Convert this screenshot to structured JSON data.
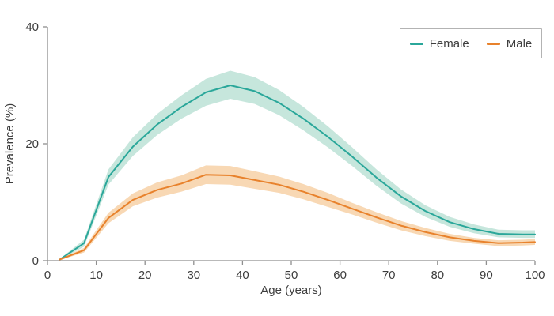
{
  "colors": {
    "female_line": "#2aa79a",
    "female_band": "#c6e6dc",
    "male_line": "#e8822c",
    "male_band": "#f8d8b4",
    "axis": "#8f8f8f",
    "text": "#3d3d3d",
    "legend_border": "#b3b3b3"
  },
  "legend": {
    "items": [
      {
        "label": "Female",
        "color": "#2aa79a"
      },
      {
        "label": "Male",
        "color": "#e8822c"
      }
    ]
  },
  "chart_data": {
    "type": "line",
    "title": "",
    "xlabel": "Age (years)",
    "ylabel": "Prevalence (%)",
    "xlim": [
      0,
      100
    ],
    "ylim": [
      0,
      40
    ],
    "x_ticks": [
      0,
      10,
      20,
      30,
      40,
      50,
      60,
      70,
      80,
      90,
      100
    ],
    "y_ticks": [
      0,
      20,
      40
    ],
    "grid": false,
    "legend_position": "top-right",
    "x": [
      2.5,
      7.5,
      12.5,
      17.5,
      22.5,
      27.5,
      32.5,
      37.5,
      42.5,
      47.5,
      52.5,
      57.5,
      62.5,
      67.5,
      72.5,
      77.5,
      82.5,
      87.5,
      92.5,
      97.5,
      100
    ],
    "series": [
      {
        "name": "Female",
        "values": [
          0.2,
          3.0,
          14.3,
          19.5,
          23.3,
          26.3,
          28.8,
          30.0,
          29.0,
          27.0,
          24.3,
          21.2,
          17.8,
          14.2,
          11.0,
          8.5,
          6.6,
          5.4,
          4.6,
          4.5,
          4.5
        ],
        "upper": [
          0.3,
          3.6,
          15.6,
          21.1,
          25.1,
          28.3,
          31.1,
          32.5,
          31.4,
          29.2,
          26.3,
          23.0,
          19.4,
          15.6,
          12.2,
          9.5,
          7.5,
          6.2,
          5.3,
          5.2,
          5.2
        ],
        "lower": [
          0.1,
          2.4,
          13.0,
          17.9,
          21.5,
          24.3,
          26.5,
          27.7,
          26.8,
          24.9,
          22.3,
          19.4,
          16.2,
          12.8,
          9.8,
          7.5,
          5.8,
          4.7,
          4.0,
          3.9,
          3.9
        ],
        "line_color": "#2aa79a",
        "band_color": "#c6e6dc"
      },
      {
        "name": "Male",
        "values": [
          0.2,
          1.8,
          7.3,
          10.4,
          12.1,
          13.2,
          14.7,
          14.6,
          13.8,
          13.0,
          11.8,
          10.4,
          8.9,
          7.4,
          6.0,
          4.9,
          4.0,
          3.4,
          3.0,
          3.1,
          3.2
        ],
        "upper": [
          0.3,
          2.2,
          8.2,
          11.5,
          13.4,
          14.6,
          16.3,
          16.2,
          15.3,
          14.4,
          13.1,
          11.6,
          9.9,
          8.3,
          6.8,
          5.6,
          4.6,
          3.9,
          3.5,
          3.6,
          3.7
        ],
        "lower": [
          0.1,
          1.4,
          6.4,
          9.3,
          10.8,
          11.8,
          13.1,
          13.0,
          12.3,
          11.6,
          10.5,
          9.2,
          7.9,
          6.5,
          5.2,
          4.2,
          3.4,
          2.9,
          2.5,
          2.6,
          2.7
        ],
        "line_color": "#e8822c",
        "band_color": "#f8d8b4"
      }
    ]
  }
}
